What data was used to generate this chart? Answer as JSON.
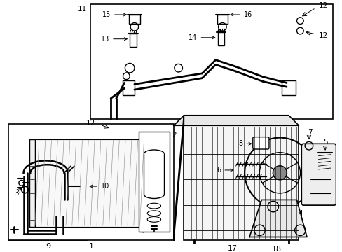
{
  "background_color": "#ffffff",
  "line_color": "#000000",
  "fig_width": 4.89,
  "fig_height": 3.6,
  "dpi": 100
}
